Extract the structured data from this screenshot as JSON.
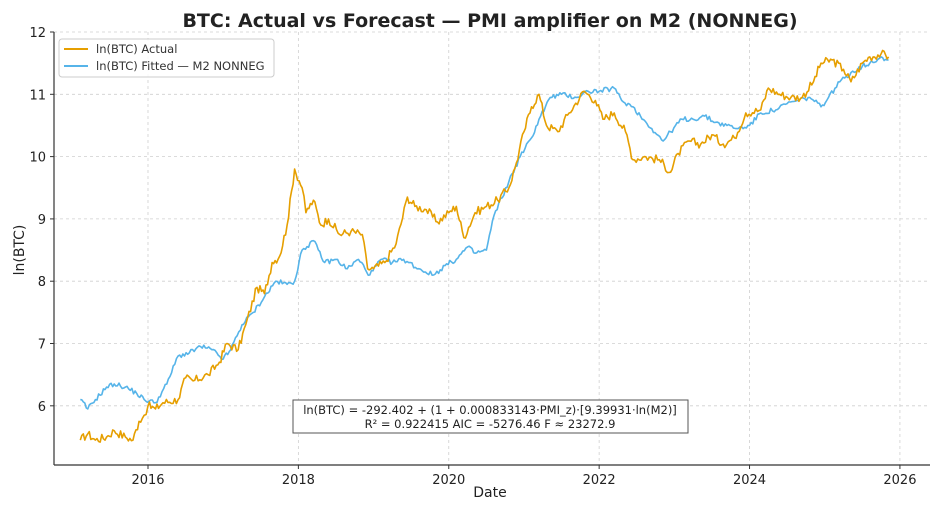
{
  "chart_data": {
    "type": "line",
    "title": "BTC: Actual vs Forecast — PMI amplifier on M2 (NONNEG)",
    "xlabel": "Date",
    "ylabel": "ln(BTC)",
    "xlim": [
      2014.75,
      2026.4
    ],
    "ylim": [
      5.05,
      12.0
    ],
    "grid": true,
    "legend_position": "top-left",
    "x_ticks": [
      2016,
      2018,
      2020,
      2022,
      2024,
      2026
    ],
    "x_tick_labels": [
      "2016",
      "2018",
      "2020",
      "2022",
      "2024",
      "2026"
    ],
    "y_ticks": [
      6,
      7,
      8,
      9,
      10,
      11,
      12
    ],
    "y_tick_labels": [
      "6",
      "7",
      "8",
      "9",
      "10",
      "11",
      "12"
    ],
    "colors": {
      "actual": "#E69F00",
      "fitted": "#56B4E9"
    },
    "series": [
      {
        "name": "ln(BTC) Actual",
        "key": "actual",
        "x": [
          2015.1,
          2015.2,
          2015.3,
          2015.45,
          2015.55,
          2015.7,
          2015.8,
          2015.88,
          2015.95,
          2016.0,
          2016.1,
          2016.2,
          2016.4,
          2016.5,
          2016.6,
          2016.8,
          2016.95,
          2017.05,
          2017.2,
          2017.3,
          2017.45,
          2017.55,
          2017.65,
          2017.75,
          2017.85,
          2017.95,
          2018.05,
          2018.1,
          2018.2,
          2018.3,
          2018.4,
          2018.55,
          2018.7,
          2018.85,
          2018.92,
          2019.0,
          2019.15,
          2019.3,
          2019.45,
          2019.55,
          2019.7,
          2019.85,
          2020.0,
          2020.1,
          2020.2,
          2020.35,
          2020.5,
          2020.65,
          2020.8,
          2020.9,
          2021.0,
          2021.1,
          2021.2,
          2021.3,
          2021.45,
          2021.6,
          2021.8,
          2021.95,
          2022.05,
          2022.2,
          2022.35,
          2022.45,
          2022.6,
          2022.8,
          2022.95,
          2023.05,
          2023.2,
          2023.35,
          2023.5,
          2023.65,
          2023.8,
          2023.95,
          2024.15,
          2024.25,
          2024.4,
          2024.55,
          2024.7,
          2024.85,
          2024.95,
          2025.1,
          2025.25,
          2025.35,
          2025.5,
          2025.6,
          2025.75,
          2025.85
        ],
        "values": [
          5.45,
          5.55,
          5.45,
          5.5,
          5.6,
          5.5,
          5.45,
          5.75,
          5.85,
          6.0,
          5.95,
          6.05,
          6.1,
          6.45,
          6.4,
          6.5,
          6.7,
          7.0,
          6.9,
          7.3,
          7.9,
          7.8,
          8.3,
          8.4,
          8.9,
          9.8,
          9.5,
          9.1,
          9.3,
          8.9,
          9.0,
          8.75,
          8.8,
          8.75,
          8.2,
          8.2,
          8.3,
          8.6,
          9.35,
          9.2,
          9.15,
          8.95,
          9.1,
          9.2,
          8.7,
          9.1,
          9.2,
          9.3,
          9.5,
          9.9,
          10.4,
          10.8,
          11.0,
          10.5,
          10.4,
          10.7,
          11.05,
          10.9,
          10.6,
          10.7,
          10.4,
          9.95,
          10.0,
          9.95,
          9.75,
          10.05,
          10.25,
          10.2,
          10.35,
          10.2,
          10.3,
          10.7,
          10.75,
          11.1,
          11.0,
          10.95,
          10.95,
          11.2,
          11.5,
          11.55,
          11.4,
          11.2,
          11.5,
          11.6,
          11.65,
          11.6
        ]
      },
      {
        "name": "ln(BTC) Fitted — M2 NONNEG",
        "key": "fitted",
        "x": [
          2015.1,
          2015.2,
          2015.3,
          2015.45,
          2015.55,
          2015.7,
          2015.85,
          2015.95,
          2016.1,
          2016.25,
          2016.4,
          2016.55,
          2016.7,
          2016.85,
          2017.0,
          2017.1,
          2017.25,
          2017.4,
          2017.55,
          2017.7,
          2017.85,
          2017.95,
          2018.05,
          2018.2,
          2018.35,
          2018.5,
          2018.65,
          2018.8,
          2018.95,
          2019.1,
          2019.25,
          2019.4,
          2019.6,
          2019.8,
          2019.95,
          2020.1,
          2020.25,
          2020.35,
          2020.5,
          2020.6,
          2020.8,
          2020.95,
          2021.1,
          2021.2,
          2021.35,
          2021.5,
          2021.7,
          2021.85,
          2022.0,
          2022.2,
          2022.3,
          2022.45,
          2022.55,
          2022.7,
          2022.85,
          2022.95,
          2023.1,
          2023.25,
          2023.4,
          2023.55,
          2023.7,
          2023.85,
          2024.0,
          2024.15,
          2024.35,
          2024.5,
          2024.65,
          2024.8,
          2024.95,
          2025.05,
          2025.2,
          2025.35,
          2025.5,
          2025.6,
          2025.75,
          2025.85
        ],
        "values": [
          6.1,
          5.95,
          6.1,
          6.3,
          6.35,
          6.3,
          6.2,
          6.1,
          6.05,
          6.35,
          6.8,
          6.85,
          6.95,
          6.9,
          6.75,
          6.9,
          7.3,
          7.5,
          7.75,
          8.0,
          7.95,
          8.0,
          8.5,
          8.65,
          8.3,
          8.35,
          8.2,
          8.35,
          8.1,
          8.35,
          8.3,
          8.35,
          8.2,
          8.1,
          8.25,
          8.35,
          8.55,
          8.45,
          8.5,
          9.05,
          9.6,
          10.0,
          10.3,
          10.6,
          10.95,
          11.0,
          10.95,
          11.05,
          11.05,
          11.1,
          10.9,
          10.8,
          10.65,
          10.45,
          10.25,
          10.4,
          10.6,
          10.6,
          10.65,
          10.55,
          10.5,
          10.45,
          10.5,
          10.7,
          10.75,
          10.85,
          10.9,
          10.95,
          10.8,
          10.95,
          11.2,
          11.35,
          11.45,
          11.5,
          11.6,
          11.55
        ]
      }
    ],
    "annotation": {
      "line1": "ln(BTC) = -292.402 + (1 + 0.000833143·PMI_z)·[9.39931·ln(M2)]",
      "line2": "R² = 0.922415   AIC = -5276.46   F ≈ 23272.9"
    }
  }
}
